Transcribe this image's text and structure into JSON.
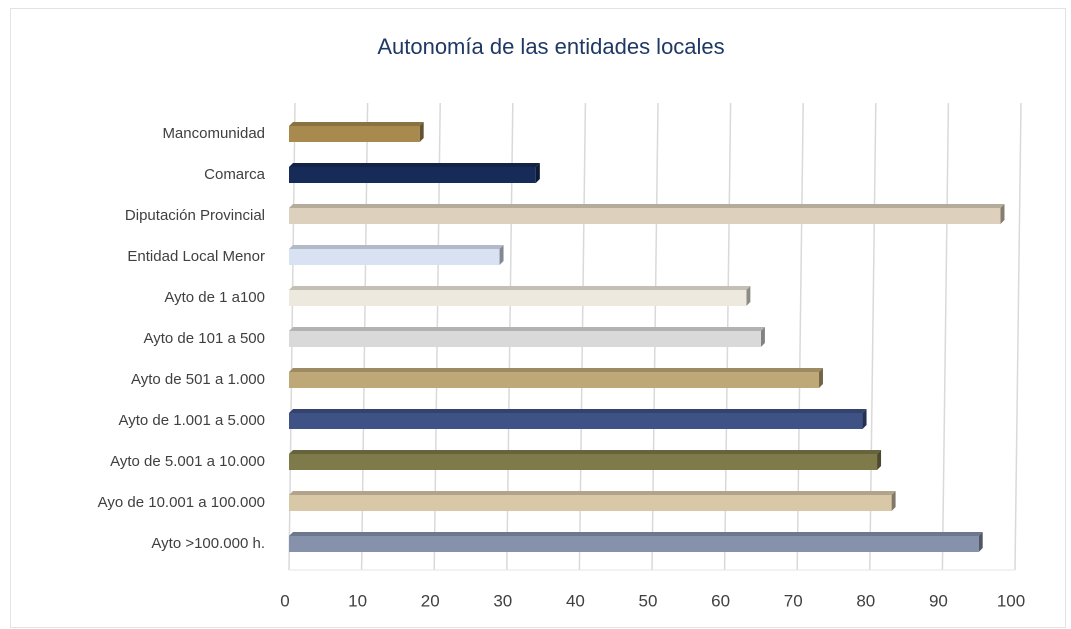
{
  "chart_data": {
    "type": "bar",
    "orientation": "horizontal",
    "title": "Autonomía de las entidades locales",
    "categories": [
      "Mancomunidad",
      "Comarca",
      "Diputación Provincial",
      "Entidad Local Menor",
      "Ayto de 1 a100",
      "Ayto de 101 a 500",
      "Ayto de 501 a 1.000",
      "Ayto de 1.001 a 5.000",
      "Ayto de 5.001 a 10.000",
      "Ayo de 10.001 a 100.000",
      "Ayto  >100.000 h."
    ],
    "values": [
      18,
      34,
      98,
      29,
      63,
      65,
      73,
      79,
      81,
      83,
      95
    ],
    "colors": [
      "#a88a4f",
      "#162b57",
      "#ddd0bc",
      "#d9e2f3",
      "#eee9df",
      "#d9d9d9",
      "#bfa878",
      "#3f5285",
      "#7e7a4a",
      "#d8c8a8",
      "#8692ac"
    ],
    "xlim": [
      0,
      100
    ],
    "xticks": [
      0,
      10,
      20,
      30,
      40,
      50,
      60,
      70,
      80,
      90,
      100
    ],
    "grid": true
  }
}
